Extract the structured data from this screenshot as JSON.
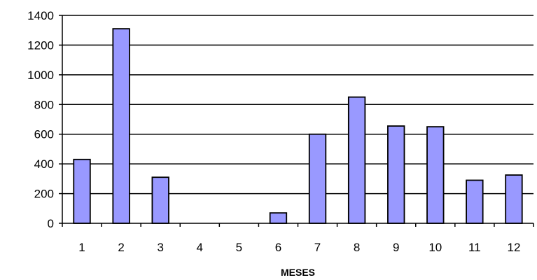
{
  "chart_data": {
    "type": "bar",
    "categories": [
      "1",
      "2",
      "3",
      "4",
      "5",
      "6",
      "7",
      "8",
      "9",
      "10",
      "11",
      "12"
    ],
    "values": [
      430,
      1310,
      310,
      0,
      0,
      70,
      600,
      850,
      655,
      650,
      290,
      325
    ],
    "title": "",
    "xlabel": "MESES",
    "ylabel": "",
    "ylim": [
      0,
      1400
    ],
    "yticks": [
      0,
      200,
      400,
      600,
      800,
      1000,
      1200,
      1400
    ],
    "grid": true,
    "legend": "none",
    "colors": {
      "bar_fill": "#9999ff",
      "bar_stroke": "#000000",
      "grid": "#000000",
      "text": "#000000"
    }
  }
}
